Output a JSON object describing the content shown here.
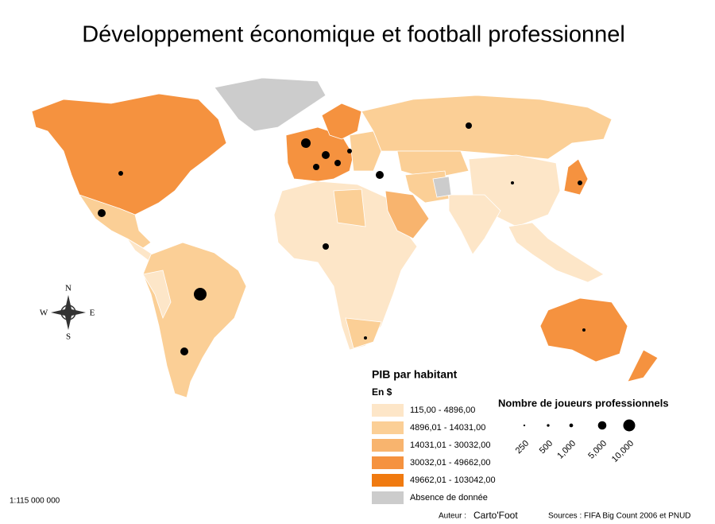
{
  "title": "Développement économique et football professionnel",
  "legend_gdp": {
    "title": "PIB par habitant",
    "unit": "En $",
    "classes": [
      {
        "label": "115,00 - 4896,00",
        "color": "#fde6c8"
      },
      {
        "label": "4896,01 - 14031,00",
        "color": "#fbcf96"
      },
      {
        "label": "14031,01 - 30032,00",
        "color": "#f8b46e"
      },
      {
        "label": "30032,01 - 49662,00",
        "color": "#f5923f"
      },
      {
        "label": "49662,01 - 103042,00",
        "color": "#f07a10"
      }
    ],
    "no_data": {
      "label": "Absence de donnée",
      "color": "#cccccc"
    }
  },
  "legend_players": {
    "title": "Nombre de joueurs professionnels",
    "sizes": [
      {
        "value": 250,
        "label": "250"
      },
      {
        "value": 500,
        "label": "500"
      },
      {
        "value": 1000,
        "label": "1,000"
      },
      {
        "value": 5000,
        "label": "5,000"
      },
      {
        "value": 10000,
        "label": "10,000"
      }
    ]
  },
  "scale": "1:115 000 000",
  "author": {
    "label": "Auteur :",
    "name": "Carto'Foot"
  },
  "sources": "Sources  : FIFA Big Count 2006 et PNUD",
  "compass": {
    "n": "N",
    "s": "S",
    "e": "E",
    "w": "W"
  }
}
